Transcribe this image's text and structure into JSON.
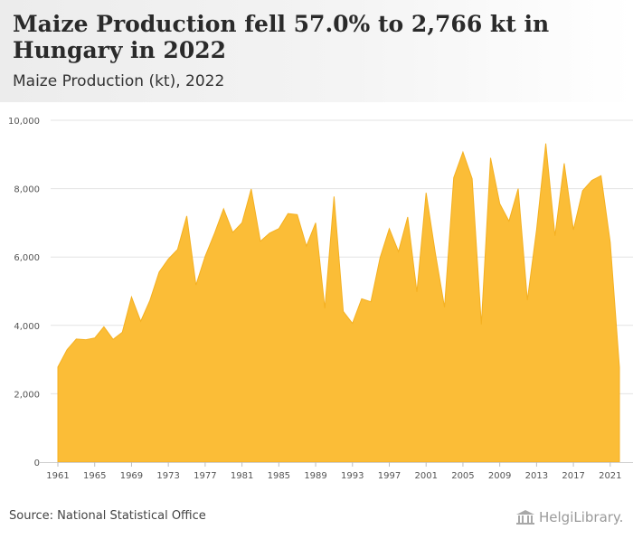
{
  "header": {
    "title": "Maize Production fell 57.0% to 2,766 kt in Hungary in 2022",
    "subtitle": "Maize Production (kt), 2022"
  },
  "footer": {
    "source": "Source: National Statistical Office",
    "logo_text": "HelgiLibrary."
  },
  "colors": {
    "area_fill": "#fbbd37",
    "area_stroke": "#f4b021",
    "grid": "#e3e3e3",
    "axis_text": "#555555"
  },
  "chart_data": {
    "type": "area",
    "title": "Maize Production fell 57.0% to 2,766 kt in Hungary in 2022",
    "subtitle": "Maize Production (kt), 2022",
    "xlabel": "",
    "ylabel": "",
    "ylim": [
      0,
      10000
    ],
    "yticks": [
      0,
      2000,
      4000,
      6000,
      8000,
      10000
    ],
    "ytick_labels": [
      "0",
      "2,000",
      "4,000",
      "6,000",
      "8,000",
      "10,000"
    ],
    "xticks": [
      1961,
      1965,
      1969,
      1973,
      1977,
      1981,
      1985,
      1989,
      1993,
      1997,
      2001,
      2005,
      2009,
      2013,
      2017,
      2021
    ],
    "xtick_labels": [
      "1961",
      "1965",
      "1969",
      "1973",
      "1977",
      "1981",
      "1985",
      "1989",
      "1993",
      "1997",
      "2001",
      "2005",
      "2009",
      "2013",
      "2017",
      "2021"
    ],
    "grid": true,
    "x": [
      1961,
      1962,
      1963,
      1964,
      1965,
      1966,
      1967,
      1968,
      1969,
      1970,
      1971,
      1972,
      1973,
      1974,
      1975,
      1976,
      1977,
      1978,
      1979,
      1980,
      1981,
      1982,
      1983,
      1984,
      1985,
      1986,
      1987,
      1988,
      1989,
      1990,
      1991,
      1992,
      1993,
      1994,
      1995,
      1996,
      1997,
      1998,
      1999,
      2000,
      2001,
      2002,
      2003,
      2004,
      2005,
      2006,
      2007,
      2008,
      2009,
      2010,
      2011,
      2012,
      2013,
      2014,
      2015,
      2016,
      2017,
      2018,
      2019,
      2020,
      2021,
      2022
    ],
    "series": [
      {
        "values": [
          2780,
          3290,
          3600,
          3580,
          3630,
          3960,
          3590,
          3800,
          4830,
          4120,
          4730,
          5560,
          5940,
          6220,
          7200,
          5180,
          6020,
          6680,
          7410,
          6720,
          7000,
          7990,
          6460,
          6700,
          6830,
          7270,
          7240,
          6320,
          7000,
          4500,
          7770,
          4410,
          4060,
          4780,
          4690,
          5980,
          6830,
          6160,
          7170,
          4980,
          7880,
          6120,
          4530,
          8320,
          9070,
          8290,
          4030,
          8900,
          7560,
          7050,
          8000,
          4740,
          6800,
          9320,
          6620,
          8740,
          6800,
          7940,
          8240,
          8380,
          6430,
          2766
        ]
      }
    ]
  }
}
